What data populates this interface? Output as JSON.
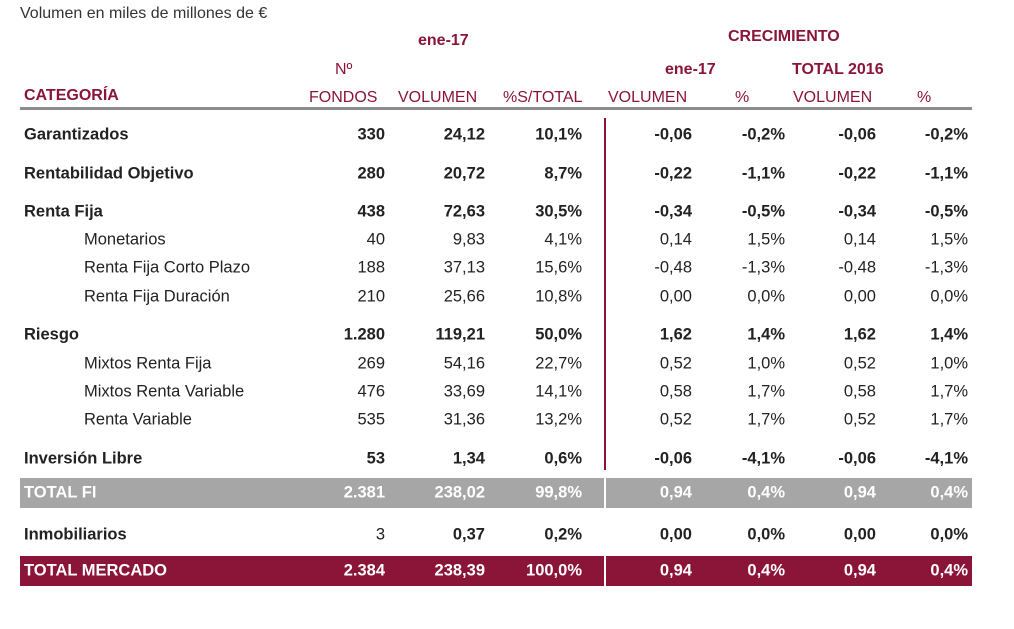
{
  "caption": "Volumen en miles de millones de €",
  "header": {
    "group1": "ene-17",
    "group2": "CRECIMIENTO",
    "sub_ene": "ene-17",
    "sub_total": "TOTAL 2016",
    "categoria": "CATEGORÍA",
    "n": "Nº",
    "fondos": "FONDOS",
    "volumen": "VOLUMEN",
    "pct_total": "%S/TOTAL",
    "c_volumen": "VOLUMEN",
    "c_pct": "%",
    "t_volumen": "VOLUMEN",
    "t_pct": "%"
  },
  "colors": {
    "accent": "#8b1538",
    "total_fi": "#a6a6a6"
  },
  "rows": [
    {
      "label": "Garantizados",
      "type": "main",
      "values": [
        "330",
        "24,12",
        "10,1%",
        "-0,06",
        "-0,2%",
        "-0,06",
        "-0,2%"
      ]
    },
    {
      "label": "Rentabilidad Objetivo",
      "type": "main",
      "values": [
        "280",
        "20,72",
        "8,7%",
        "-0,22",
        "-1,1%",
        "-0,22",
        "-1,1%"
      ]
    },
    {
      "label": "Renta Fija",
      "type": "main",
      "values": [
        "438",
        "72,63",
        "30,5%",
        "-0,34",
        "-0,5%",
        "-0,34",
        "-0,5%"
      ]
    },
    {
      "label": "Monetarios",
      "type": "sub",
      "values": [
        "40",
        "9,83",
        "4,1%",
        "0,14",
        "1,5%",
        "0,14",
        "1,5%"
      ]
    },
    {
      "label": "Renta Fija Corto Plazo",
      "type": "sub",
      "values": [
        "188",
        "37,13",
        "15,6%",
        "-0,48",
        "-1,3%",
        "-0,48",
        "-1,3%"
      ]
    },
    {
      "label": "Renta Fija Duración",
      "type": "sub",
      "values": [
        "210",
        "25,66",
        "10,8%",
        "0,00",
        "0,0%",
        "0,00",
        "0,0%"
      ]
    },
    {
      "label": "Riesgo",
      "type": "main",
      "values": [
        "1.280",
        "119,21",
        "50,0%",
        "1,62",
        "1,4%",
        "1,62",
        "1,4%"
      ]
    },
    {
      "label": "Mixtos Renta Fija",
      "type": "sub",
      "values": [
        "269",
        "54,16",
        "22,7%",
        "0,52",
        "1,0%",
        "0,52",
        "1,0%"
      ]
    },
    {
      "label": "Mixtos Renta Variable",
      "type": "sub",
      "values": [
        "476",
        "33,69",
        "14,1%",
        "0,58",
        "1,7%",
        "0,58",
        "1,7%"
      ]
    },
    {
      "label": "Renta Variable",
      "type": "sub",
      "values": [
        "535",
        "31,36",
        "13,2%",
        "0,52",
        "1,7%",
        "0,52",
        "1,7%"
      ]
    },
    {
      "label": "Inversión Libre",
      "type": "main",
      "values": [
        "53",
        "1,34",
        "0,6%",
        "-0,06",
        "-4,1%",
        "-0,06",
        "-4,1%"
      ]
    },
    {
      "label": "TOTAL FI",
      "type": "total_fi",
      "values": [
        "2.381",
        "238,02",
        "99,8%",
        "0,94",
        "0,4%",
        "0,94",
        "0,4%"
      ]
    },
    {
      "label": "Inmobiliarios",
      "type": "inmo",
      "values": [
        "3",
        "0,37",
        "0,2%",
        "0,00",
        "0,0%",
        "0,00",
        "0,0%"
      ]
    },
    {
      "label": "TOTAL MERCADO",
      "type": "total_mk",
      "values": [
        "2.384",
        "238,39",
        "100,0%",
        "0,94",
        "0,4%",
        "0,94",
        "0,4%"
      ]
    }
  ]
}
